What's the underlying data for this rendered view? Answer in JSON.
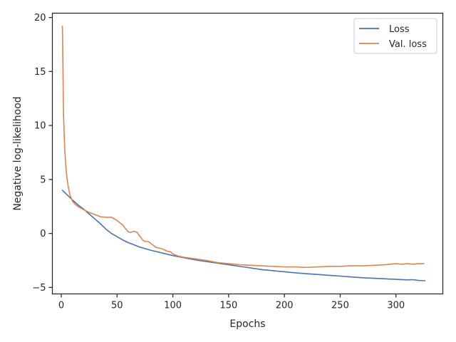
{
  "chart_data": {
    "type": "line",
    "title": "",
    "xlabel": "Epochs",
    "ylabel": "Negative log-likelihood",
    "xlim": [
      -8,
      342
    ],
    "ylim": [
      -5.6,
      20.4
    ],
    "xticks": [
      0,
      50,
      100,
      150,
      200,
      250,
      300
    ],
    "yticks": [
      -5,
      0,
      5,
      10,
      15,
      20
    ],
    "xtick_labels": [
      "0",
      "50",
      "100",
      "150",
      "200",
      "250",
      "300"
    ],
    "ytick_labels": [
      "−5",
      "0",
      "5",
      "10",
      "15",
      "20"
    ],
    "grid": false,
    "legend_position": "top-right",
    "series": [
      {
        "name": "Loss",
        "color": "#4c72b0",
        "x": [
          1,
          5,
          10,
          15,
          20,
          25,
          30,
          35,
          40,
          45,
          50,
          55,
          60,
          65,
          70,
          75,
          80,
          90,
          100,
          110,
          120,
          130,
          140,
          150,
          160,
          170,
          180,
          190,
          200,
          210,
          220,
          230,
          240,
          250,
          260,
          270,
          280,
          290,
          300,
          310,
          315,
          320,
          326
        ],
        "y": [
          4.0,
          3.6,
          3.1,
          2.65,
          2.25,
          1.8,
          1.35,
          0.9,
          0.4,
          0.0,
          -0.3,
          -0.6,
          -0.85,
          -1.05,
          -1.25,
          -1.4,
          -1.55,
          -1.8,
          -2.05,
          -2.25,
          -2.45,
          -2.6,
          -2.75,
          -2.9,
          -3.05,
          -3.2,
          -3.35,
          -3.45,
          -3.55,
          -3.65,
          -3.73,
          -3.8,
          -3.88,
          -3.95,
          -4.03,
          -4.1,
          -4.15,
          -4.2,
          -4.25,
          -4.3,
          -4.28,
          -4.35,
          -4.38
        ]
      },
      {
        "name": "Val. loss",
        "color": "#dd8452",
        "x": [
          1,
          2,
          3,
          4,
          5,
          6,
          7,
          8,
          10,
          12,
          15,
          20,
          25,
          30,
          35,
          40,
          45,
          50,
          55,
          58,
          60,
          62,
          65,
          68,
          70,
          73,
          75,
          78,
          80,
          85,
          90,
          95,
          98,
          100,
          105,
          110,
          120,
          130,
          140,
          150,
          160,
          170,
          180,
          190,
          200,
          210,
          220,
          230,
          240,
          250,
          260,
          270,
          280,
          290,
          295,
          300,
          305,
          310,
          315,
          320,
          325
        ],
        "y": [
          19.2,
          11.0,
          8.0,
          6.3,
          5.2,
          4.5,
          3.9,
          3.5,
          3.0,
          2.75,
          2.5,
          2.2,
          1.95,
          1.75,
          1.55,
          1.5,
          1.5,
          1.2,
          0.8,
          0.4,
          0.15,
          0.1,
          0.2,
          0.1,
          -0.2,
          -0.6,
          -0.75,
          -0.75,
          -0.9,
          -1.3,
          -1.4,
          -1.65,
          -1.7,
          -1.9,
          -2.1,
          -2.2,
          -2.35,
          -2.5,
          -2.7,
          -2.8,
          -2.9,
          -2.95,
          -3.0,
          -3.05,
          -3.1,
          -3.1,
          -3.15,
          -3.1,
          -3.05,
          -3.05,
          -3.0,
          -3.0,
          -2.95,
          -2.9,
          -2.85,
          -2.8,
          -2.85,
          -2.8,
          -2.85,
          -2.8,
          -2.8
        ]
      }
    ]
  }
}
